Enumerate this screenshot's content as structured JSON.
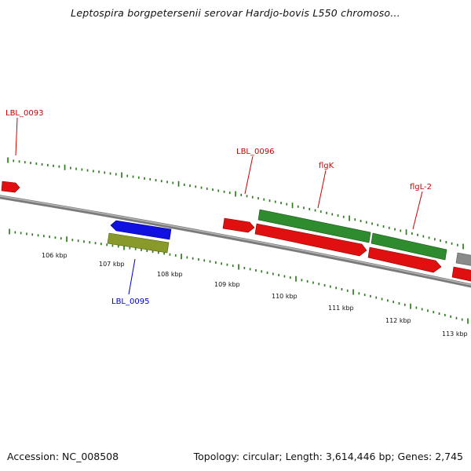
{
  "title": "Leptospira borgpetersenii serovar Hardjo-bovis L550 chromoso...",
  "footer": {
    "accession": "Accession: NC_008508",
    "stats": "Topology: circular; Length: 3,614,446 bp; Genes: 2,745"
  },
  "colors": {
    "forward_cds": "#e01010",
    "reverse_cds": "#1010e0",
    "gene": "#2e8b2e",
    "other": "#8a9a2a",
    "backbone": "#808080",
    "tick": "#2e7d1e",
    "label_red": "#cc0000",
    "label_blue": "#0000cc"
  },
  "scale_labels": [
    "106 kbp",
    "107 kbp",
    "108 kbp",
    "109 kbp",
    "110 kbp",
    "111 kbp",
    "112 kbp",
    "113 kbp"
  ],
  "gene_labels": [
    {
      "text": "LBL_0093",
      "color": "red"
    },
    {
      "text": "LBL_0096",
      "color": "red"
    },
    {
      "text": "flgK",
      "color": "red"
    },
    {
      "text": "flgL-2",
      "color": "red"
    },
    {
      "text": "LBL_0095",
      "color": "blue"
    }
  ]
}
